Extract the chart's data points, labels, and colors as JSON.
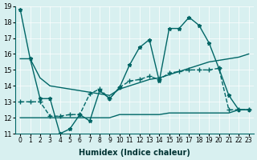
{
  "title": "",
  "xlabel": "Humidex (Indice chaleur)",
  "ylabel": "",
  "bg_color": "#d8f0f0",
  "line_color": "#006666",
  "xlim": [
    0,
    23
  ],
  "ylim": [
    11,
    19
  ],
  "yticks": [
    11,
    12,
    13,
    14,
    15,
    16,
    17,
    18,
    19
  ],
  "xtick_labels": [
    "0",
    "1",
    "2",
    "3",
    "4",
    "5",
    "6",
    "7",
    "8",
    "9",
    "10",
    "11",
    "12",
    "13",
    "14",
    "15",
    "16",
    "17",
    "18",
    "19",
    "20",
    "21",
    "22",
    "23"
  ],
  "line1_x": [
    0,
    1,
    2,
    3,
    4,
    5,
    6,
    7,
    8,
    9,
    10,
    11,
    12,
    13,
    14,
    15,
    16,
    17,
    18,
    19,
    20,
    21,
    22,
    23
  ],
  "line1_y": [
    18.8,
    15.7,
    13.2,
    13.2,
    11.0,
    11.3,
    12.2,
    11.8,
    13.7,
    13.2,
    13.9,
    15.3,
    16.4,
    16.9,
    14.3,
    17.6,
    17.6,
    18.3,
    17.8,
    16.7,
    15.1,
    13.4,
    12.5,
    12.5
  ],
  "line2_x": [
    0,
    1,
    2,
    3,
    4,
    5,
    6,
    7,
    8,
    9,
    10,
    11,
    12,
    13,
    14,
    15,
    16,
    17,
    18,
    19,
    20,
    21,
    22,
    23
  ],
  "line2_y": [
    13.0,
    13.0,
    13.0,
    12.1,
    12.1,
    12.2,
    12.2,
    13.5,
    13.8,
    13.2,
    13.9,
    14.3,
    14.4,
    14.6,
    14.4,
    14.8,
    14.9,
    15.0,
    15.0,
    15.0,
    15.1,
    12.5,
    12.5,
    12.5
  ],
  "line3_x": [
    0,
    1,
    2,
    3,
    4,
    5,
    6,
    7,
    8,
    9,
    10,
    11,
    12,
    13,
    14,
    15,
    16,
    17,
    18,
    19,
    20,
    21,
    22,
    23
  ],
  "line3_y": [
    15.7,
    15.7,
    14.5,
    14.0,
    13.9,
    13.8,
    13.7,
    13.6,
    13.5,
    13.4,
    13.8,
    14.0,
    14.2,
    14.4,
    14.5,
    14.7,
    14.9,
    15.1,
    15.3,
    15.5,
    15.6,
    15.7,
    15.8,
    16.0
  ],
  "line4_x": [
    0,
    1,
    2,
    3,
    4,
    5,
    6,
    7,
    8,
    9,
    10,
    11,
    12,
    13,
    14,
    15,
    16,
    17,
    18,
    19,
    20,
    21,
    22,
    23
  ],
  "line4_y": [
    12.0,
    12.0,
    12.0,
    12.0,
    12.0,
    12.0,
    12.0,
    12.0,
    12.0,
    12.0,
    12.2,
    12.2,
    12.2,
    12.2,
    12.2,
    12.3,
    12.3,
    12.3,
    12.3,
    12.3,
    12.3,
    12.3,
    12.5,
    12.5
  ]
}
